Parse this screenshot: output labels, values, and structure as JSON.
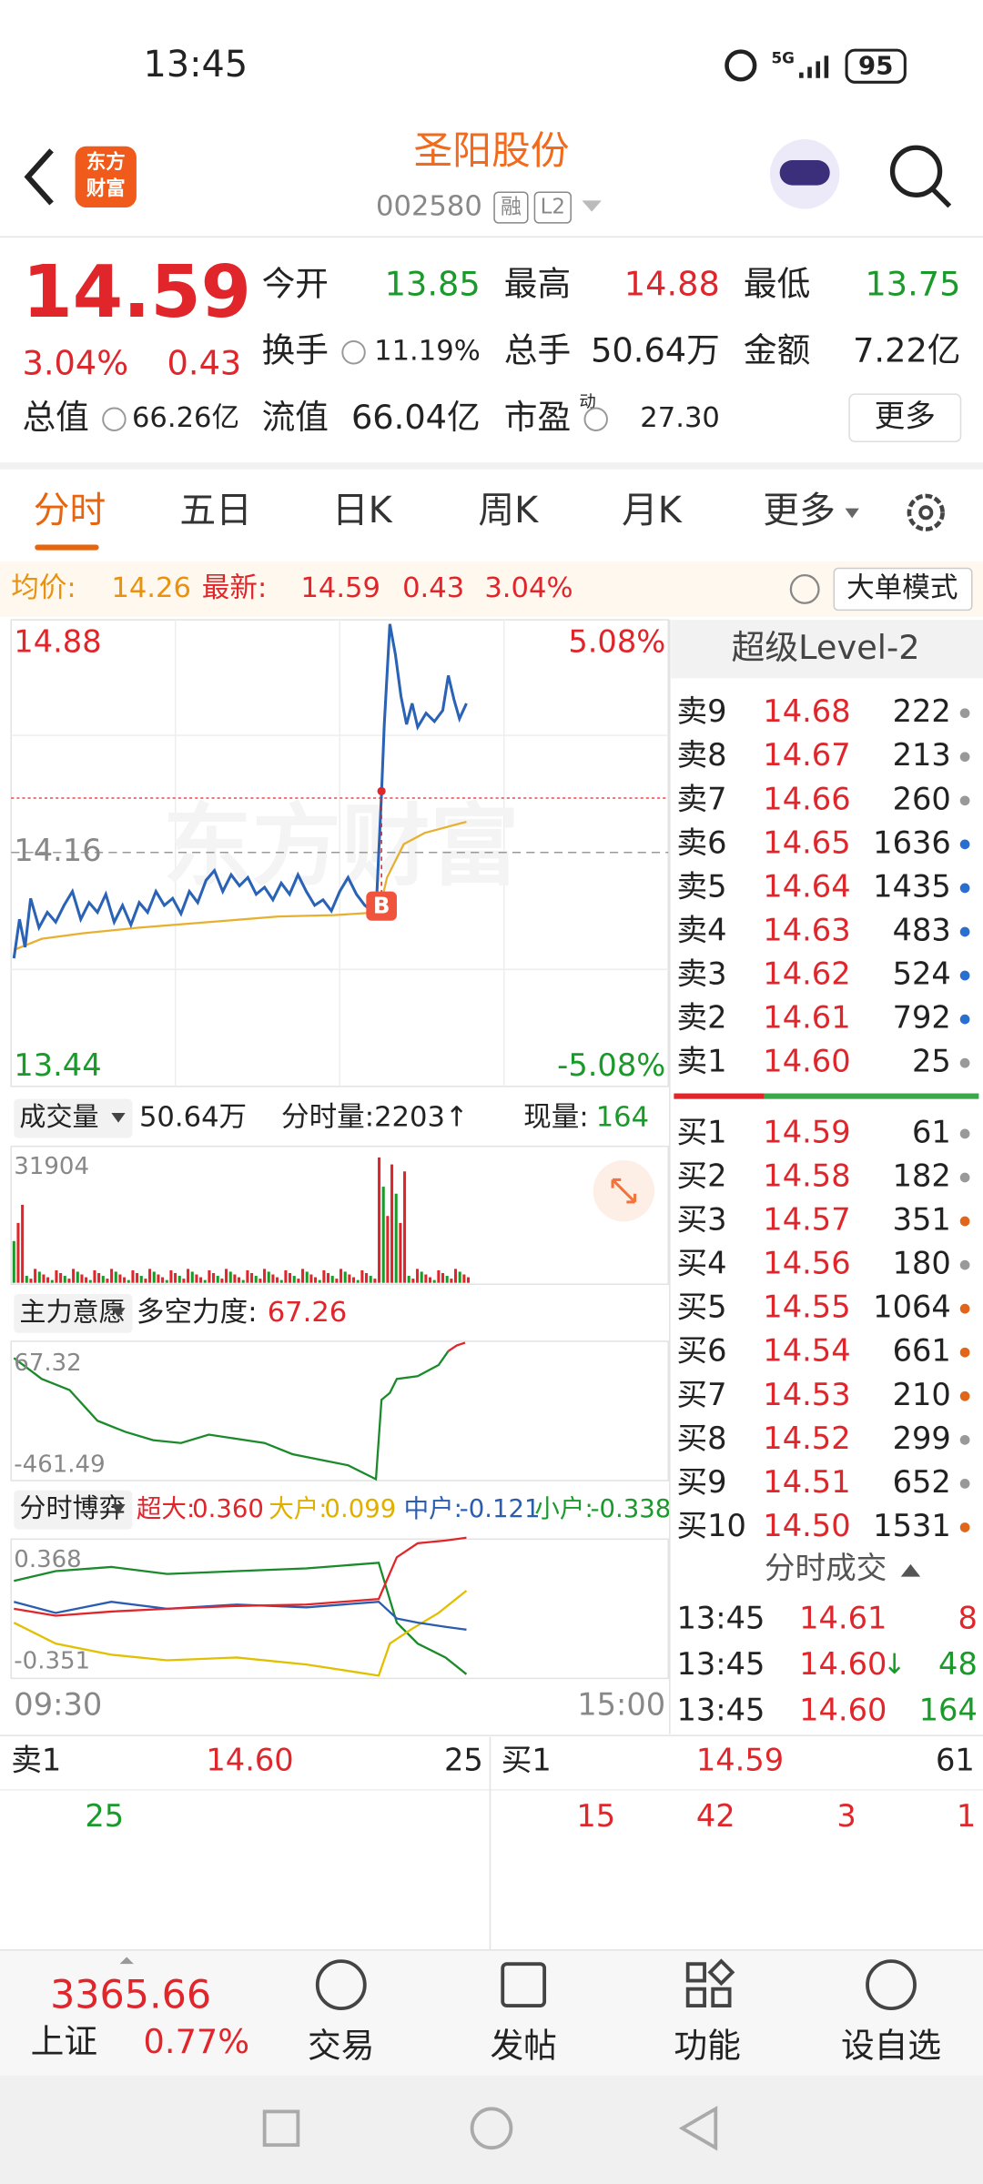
{
  "status": {
    "time": "13:45",
    "network": "5G",
    "battery": "95"
  },
  "header": {
    "logo": [
      "东方",
      "财富"
    ],
    "title": "圣阳股份",
    "code": "002580",
    "tags": [
      "融",
      "L2"
    ]
  },
  "quote": {
    "price": "14.59",
    "percent": "3.04%",
    "change": "0.43",
    "stats": [
      {
        "label": "今开",
        "value": "13.85",
        "color": "#1a9a2a"
      },
      {
        "label": "最高",
        "value": "14.88",
        "color": "#e0262b"
      },
      {
        "label": "最低",
        "value": "13.75",
        "color": "#1a9a2a"
      },
      {
        "label": "换手",
        "value": "11.19%",
        "color": "#222222"
      },
      {
        "label": "总手",
        "value": "50.64万",
        "color": "#222222"
      },
      {
        "label": "金额",
        "value": "7.22亿",
        "color": "#222222"
      },
      {
        "label": "总值",
        "value": "66.26亿",
        "color": "#222222"
      },
      {
        "label": "流值",
        "value": "66.04亿",
        "color": "#222222"
      },
      {
        "label": "市盈",
        "value": "27.30",
        "color": "#222222",
        "sup": "动"
      }
    ],
    "more": "更多"
  },
  "tabs": [
    "分时",
    "五日",
    "日K",
    "周K",
    "月K",
    "更多"
  ],
  "info_bar": {
    "avg_label": "均价:",
    "avg": "14.26",
    "latest_label": "最新:",
    "latest": "14.59",
    "change": "0.43",
    "percent": "3.04%",
    "mode": "大单模式"
  },
  "price_chart": {
    "high": "14.88",
    "base": "14.16",
    "low": "13.44",
    "high_pct": "5.08%",
    "low_pct": "-5.08%",
    "watermark": "东方财富",
    "marker": "B"
  },
  "volume": {
    "selector": "成交量",
    "total": "50.64万",
    "minute": "分时量:2203↑",
    "current_label": "现量:",
    "current": "164",
    "max": "31904"
  },
  "force": {
    "selector": "主力意愿",
    "label": "多空力度:",
    "value": "67.26",
    "top": "67.32",
    "bottom": "-461.49"
  },
  "game": {
    "selector": "分时博弈",
    "items": [
      {
        "label": "超大:",
        "value": "0.360",
        "color": "#e0262b"
      },
      {
        "label": "大户:",
        "value": "0.099",
        "color": "#e0b000"
      },
      {
        "label": "中户:",
        "value": "-0.121",
        "color": "#2a5cb0"
      },
      {
        "label": "小户:",
        "value": "-0.338",
        "color": "#1a9a2a"
      }
    ],
    "top": "0.368",
    "bottom": "-0.351"
  },
  "times": [
    "09:30",
    "15:00"
  ],
  "level2": {
    "title": "超级Level-2",
    "asks": [
      {
        "label": "卖9",
        "price": "14.68",
        "volume": "222",
        "dot": "#999999"
      },
      {
        "label": "卖8",
        "price": "14.67",
        "volume": "213",
        "dot": "#999999"
      },
      {
        "label": "卖7",
        "price": "14.66",
        "volume": "260",
        "dot": "#999999"
      },
      {
        "label": "卖6",
        "price": "14.65",
        "volume": "1636",
        "dot": "#2a6fd0"
      },
      {
        "label": "卖5",
        "price": "14.64",
        "volume": "1435",
        "dot": "#2a6fd0"
      },
      {
        "label": "卖4",
        "price": "14.63",
        "volume": "483",
        "dot": "#2a6fd0"
      },
      {
        "label": "卖3",
        "price": "14.62",
        "volume": "524",
        "dot": "#2a6fd0"
      },
      {
        "label": "卖2",
        "price": "14.61",
        "volume": "792",
        "dot": "#2a6fd0"
      },
      {
        "label": "卖1",
        "price": "14.60",
        "volume": "25",
        "dot": "#999999"
      }
    ],
    "bids": [
      {
        "label": "买1",
        "price": "14.59",
        "volume": "61",
        "dot": "#999999"
      },
      {
        "label": "买2",
        "price": "14.58",
        "volume": "182",
        "dot": "#999999"
      },
      {
        "label": "买3",
        "price": "14.57",
        "volume": "351",
        "dot": "#e0661a"
      },
      {
        "label": "买4",
        "price": "14.56",
        "volume": "180",
        "dot": "#999999"
      },
      {
        "label": "买5",
        "price": "14.55",
        "volume": "1064",
        "dot": "#e0661a"
      },
      {
        "label": "买6",
        "price": "14.54",
        "volume": "661",
        "dot": "#e0661a"
      },
      {
        "label": "买7",
        "price": "14.53",
        "volume": "210",
        "dot": "#e0661a"
      },
      {
        "label": "买8",
        "price": "14.52",
        "volume": "299",
        "dot": "#999999"
      },
      {
        "label": "买9",
        "price": "14.51",
        "volume": "652",
        "dot": "#999999"
      },
      {
        "label": "买10",
        "price": "14.50",
        "volume": "1531",
        "dot": "#e0661a"
      }
    ],
    "trades_title": "分时成交",
    "trades": [
      {
        "time": "13:45",
        "price": "14.61",
        "volume": "8",
        "color": "#e0262b"
      },
      {
        "time": "13:45",
        "price": "14.60",
        "arrow": "↓",
        "volume": "48",
        "color": "#1a9a2a"
      },
      {
        "time": "13:45",
        "price": "14.60",
        "volume": "164",
        "color": "#1a9a2a"
      }
    ]
  },
  "detail": {
    "ask_label": "卖1",
    "ask_price": "14.60",
    "ask_volume": "25",
    "bid_label": "买1",
    "bid_price": "14.59",
    "bid_volume": "61",
    "ask_orders": [
      "25"
    ],
    "bid_orders": [
      "15",
      "42",
      "3",
      "1"
    ]
  },
  "nav": {
    "index_value": "3365.66",
    "index_name": "上证",
    "index_pct": "0.77%",
    "items": [
      "交易",
      "发帖",
      "功能",
      "设自选"
    ]
  }
}
